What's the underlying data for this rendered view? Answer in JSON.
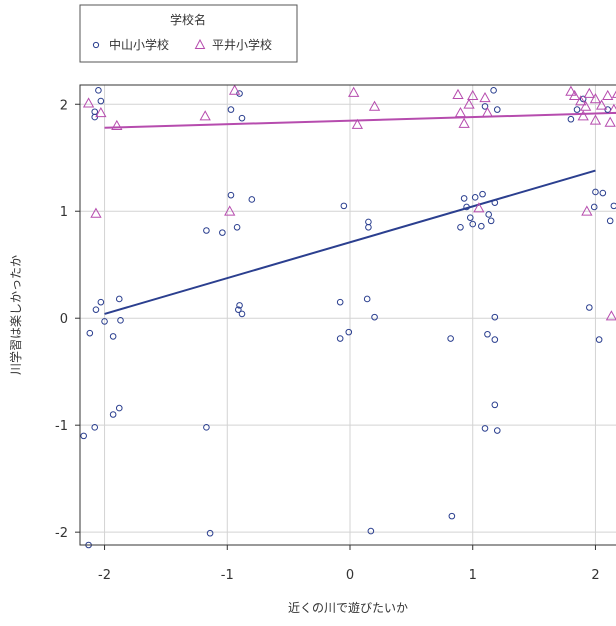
{
  "chart_data": {
    "type": "scatter",
    "title": "",
    "xlabel": "近くの川で遊びたいか",
    "ylabel": "川学習は楽しかったか",
    "xlim": [
      -2.2,
      2.2
    ],
    "ylim": [
      -2.12,
      2.18
    ],
    "x_ticks": [
      "-2",
      "-1",
      "0",
      "1",
      "2"
    ],
    "y_ticks": [
      "-2",
      "-1",
      "0",
      "1",
      "2"
    ],
    "grid": true,
    "legend": {
      "title": "学校名",
      "placement": "top-left",
      "entries": [
        "中山小学校",
        "平井小学校"
      ]
    },
    "series": [
      {
        "name": "中山小学校",
        "marker": "circle",
        "color": "#2b3f8f",
        "fit": {
          "x": [
            -2.0,
            2.0
          ],
          "y": [
            0.04,
            1.38
          ]
        },
        "points": [
          [
            -2.05,
            2.13
          ],
          [
            -2.08,
            1.93
          ],
          [
            -2.08,
            1.88
          ],
          [
            -2.03,
            2.03
          ],
          [
            -2.07,
            0.08
          ],
          [
            -2.03,
            0.15
          ],
          [
            -2.12,
            -0.14
          ],
          [
            -2.0,
            -0.03
          ],
          [
            -1.93,
            -0.17
          ],
          [
            -1.88,
            0.18
          ],
          [
            -1.87,
            -0.02
          ],
          [
            -2.08,
            -1.02
          ],
          [
            -2.17,
            -1.1
          ],
          [
            -1.93,
            -0.9
          ],
          [
            -1.88,
            -0.84
          ],
          [
            -2.13,
            -2.12
          ],
          [
            -1.17,
            0.82
          ],
          [
            -1.04,
            0.8
          ],
          [
            -1.17,
            -1.02
          ],
          [
            -1.14,
            -2.01
          ],
          [
            -0.97,
            1.15
          ],
          [
            -0.97,
            1.95
          ],
          [
            -0.88,
            1.87
          ],
          [
            -0.9,
            2.1
          ],
          [
            -0.91,
            0.08
          ],
          [
            -0.9,
            0.12
          ],
          [
            -0.88,
            0.04
          ],
          [
            -0.92,
            0.85
          ],
          [
            -0.8,
            1.11
          ],
          [
            -0.05,
            1.05
          ],
          [
            -0.08,
            0.15
          ],
          [
            -0.08,
            -0.19
          ],
          [
            -0.01,
            -0.13
          ],
          [
            0.15,
            0.9
          ],
          [
            0.15,
            0.85
          ],
          [
            0.14,
            0.18
          ],
          [
            0.2,
            0.01
          ],
          [
            0.17,
            -1.99
          ],
          [
            0.82,
            -0.19
          ],
          [
            0.83,
            -1.85
          ],
          [
            0.9,
            0.85
          ],
          [
            0.93,
            1.12
          ],
          [
            0.95,
            1.04
          ],
          [
            0.98,
            0.94
          ],
          [
            1.0,
            0.88
          ],
          [
            1.02,
            1.13
          ],
          [
            1.07,
            0.86
          ],
          [
            1.08,
            1.16
          ],
          [
            1.13,
            0.97
          ],
          [
            1.15,
            0.91
          ],
          [
            1.18,
            1.08
          ],
          [
            1.12,
            -0.15
          ],
          [
            1.18,
            0.01
          ],
          [
            1.18,
            -0.2
          ],
          [
            1.1,
            -1.03
          ],
          [
            1.2,
            -1.05
          ],
          [
            1.18,
            -0.81
          ],
          [
            1.2,
            1.95
          ],
          [
            1.17,
            2.13
          ],
          [
            1.1,
            1.98
          ],
          [
            1.8,
            1.86
          ],
          [
            1.85,
            1.95
          ],
          [
            1.95,
            0.1
          ],
          [
            1.99,
            1.04
          ],
          [
            2.0,
            1.18
          ],
          [
            2.06,
            1.17
          ],
          [
            2.03,
            -0.2
          ],
          [
            2.12,
            0.91
          ],
          [
            2.15,
            1.05
          ],
          [
            2.1,
            1.95
          ],
          [
            1.9,
            2.05
          ]
        ]
      },
      {
        "name": "平井小学校",
        "marker": "triangle",
        "color": "#b64cae",
        "fit": {
          "x": [
            -2.0,
            2.2
          ],
          "y": [
            1.78,
            1.92
          ]
        },
        "points": [
          [
            -2.13,
            2.01
          ],
          [
            -2.03,
            1.92
          ],
          [
            -1.9,
            1.8
          ],
          [
            -2.07,
            0.98
          ],
          [
            -1.18,
            1.89
          ],
          [
            -0.94,
            2.13
          ],
          [
            -0.98,
            1.0
          ],
          [
            0.03,
            2.11
          ],
          [
            0.06,
            1.81
          ],
          [
            0.2,
            1.98
          ],
          [
            0.88,
            2.09
          ],
          [
            0.9,
            1.92
          ],
          [
            0.93,
            1.82
          ],
          [
            0.97,
            2.0
          ],
          [
            1.0,
            2.08
          ],
          [
            1.05,
            1.03
          ],
          [
            1.1,
            2.06
          ],
          [
            1.12,
            1.92
          ],
          [
            1.8,
            2.12
          ],
          [
            1.83,
            2.08
          ],
          [
            1.88,
            2.03
          ],
          [
            1.92,
            1.98
          ],
          [
            1.95,
            2.1
          ],
          [
            2.0,
            2.05
          ],
          [
            2.05,
            1.99
          ],
          [
            2.1,
            2.08
          ],
          [
            2.15,
            1.95
          ],
          [
            2.18,
            2.1
          ],
          [
            1.9,
            1.89
          ],
          [
            2.0,
            1.85
          ],
          [
            2.12,
            1.83
          ],
          [
            1.93,
            1.0
          ],
          [
            2.13,
            0.02
          ]
        ]
      }
    ]
  }
}
